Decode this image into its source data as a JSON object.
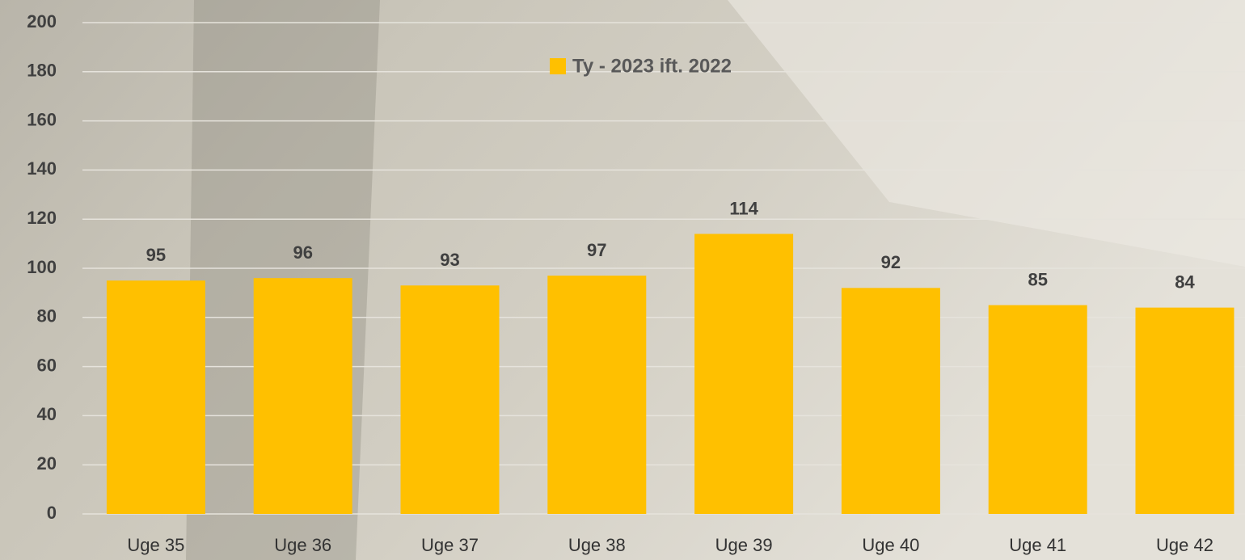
{
  "chart_data": {
    "type": "bar",
    "categories": [
      "Uge 35",
      "Uge 36",
      "Uge 37",
      "Uge 38",
      "Uge 39",
      "Uge 40",
      "Uge 41",
      "Uge 42"
    ],
    "series": [
      {
        "name": "Ty - 2023 ift. 2022",
        "color": "#ffc000",
        "values": [
          95,
          96,
          93,
          97,
          114,
          92,
          85,
          84
        ]
      }
    ],
    "ylim": [
      0,
      200
    ],
    "yticks": [
      0,
      20,
      40,
      60,
      80,
      100,
      120,
      140,
      160,
      180,
      200
    ],
    "grid": true,
    "legend": "top"
  }
}
